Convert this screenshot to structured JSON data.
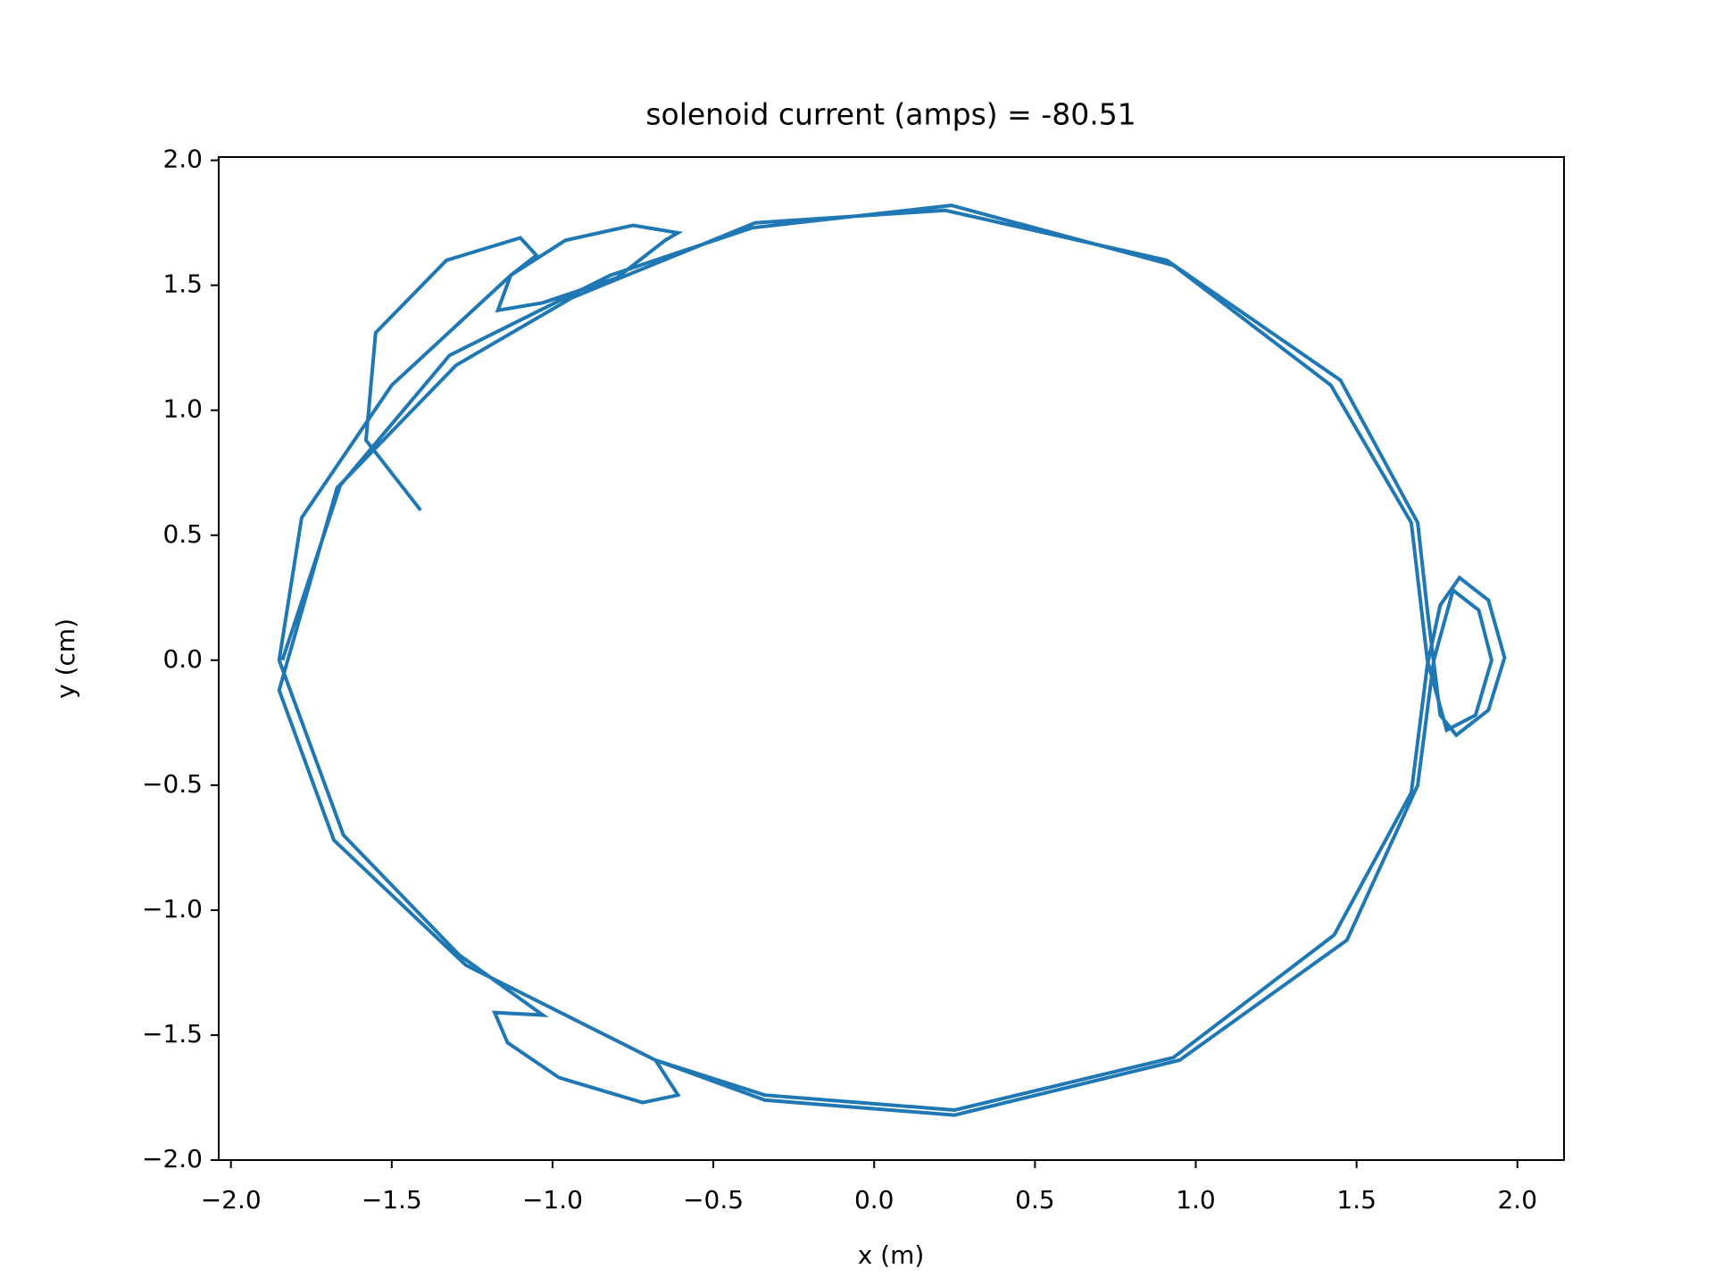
{
  "chart_data": {
    "type": "line",
    "title": "solenoid current (amps) = -80.51",
    "x_label": "x (m)",
    "y_label": "y (cm)",
    "xlim": [
      -2.038,
      2.145
    ],
    "ylim": [
      -2.0,
      2.013
    ],
    "xticks": [
      {
        "value": -2,
        "label": "−2.0"
      },
      {
        "value": -1.5,
        "label": "−1.5"
      },
      {
        "value": -1,
        "label": "−1.0"
      },
      {
        "value": -0.5,
        "label": "−0.5"
      },
      {
        "value": 0,
        "label": "0.0"
      },
      0.5,
      {
        "value": 1,
        "label": "1.0"
      },
      1.5,
      {
        "value": 2,
        "label": "2.0"
      }
    ],
    "yticks": [
      {
        "value": -2,
        "label": "−2.0"
      },
      {
        "value": -1.5,
        "label": "−1.5"
      },
      {
        "value": -1,
        "label": "−1.0"
      },
      {
        "value": -0.5,
        "label": "−0.5"
      },
      {
        "value": 0,
        "label": "0.0"
      },
      0.5,
      {
        "value": 1,
        "label": "1.0"
      },
      1.5,
      {
        "value": 2,
        "label": "2.0"
      }
    ],
    "grid": false,
    "series": [
      {
        "color": "#1f77b4",
        "x": [
          -1.41,
          -1.58,
          -1.55,
          -1.33,
          -1.1,
          -1.05,
          -1.13,
          -1.17,
          -1.03,
          -0.8,
          -0.65,
          -0.61,
          -0.75,
          -0.96,
          -1.13,
          -1.5,
          -1.78,
          -1.85,
          -1.65,
          -1.29,
          -1.03,
          -1.18,
          -1.14,
          -0.98,
          -0.72,
          -0.61,
          -0.68,
          -0.34,
          0.25,
          0.93,
          1.43,
          1.67,
          1.72,
          1.76,
          1.82,
          1.91,
          1.96,
          1.91,
          1.81,
          1.76,
          1.72,
          1.69,
          1.45,
          0.91,
          0.22,
          -0.37,
          -0.94,
          -1.3,
          -1.67,
          -1.85,
          -1.68,
          -1.27,
          -0.68,
          -0.34,
          0.25,
          0.95,
          1.47,
          1.69,
          1.74,
          1.8,
          1.88,
          1.92,
          1.87,
          1.78,
          1.72,
          1.67,
          1.42,
          0.93,
          0.24,
          -0.38,
          -0.82,
          -1.32,
          -1.66,
          -1.84
        ],
        "values": [
          0.6,
          0.88,
          1.31,
          1.6,
          1.69,
          1.62,
          1.54,
          1.4,
          1.43,
          1.53,
          1.68,
          1.71,
          1.74,
          1.68,
          1.54,
          1.1,
          0.57,
          0.0,
          -0.7,
          -1.18,
          -1.42,
          -1.41,
          -1.53,
          -1.67,
          -1.77,
          -1.74,
          -1.6,
          -1.74,
          -1.8,
          -1.59,
          -1.1,
          -0.53,
          -0.02,
          0.22,
          0.33,
          0.24,
          0.01,
          -0.2,
          -0.3,
          -0.22,
          0.2,
          0.55,
          1.12,
          1.6,
          1.8,
          1.75,
          1.45,
          1.18,
          0.69,
          -0.12,
          -0.72,
          -1.22,
          -1.6,
          -1.76,
          -1.82,
          -1.6,
          -1.12,
          -0.5,
          0.0,
          0.28,
          0.2,
          0.0,
          -0.22,
          -0.28,
          0.0,
          0.55,
          1.1,
          1.58,
          1.82,
          1.73,
          1.54,
          1.22,
          0.7,
          0.0
        ]
      }
    ]
  }
}
